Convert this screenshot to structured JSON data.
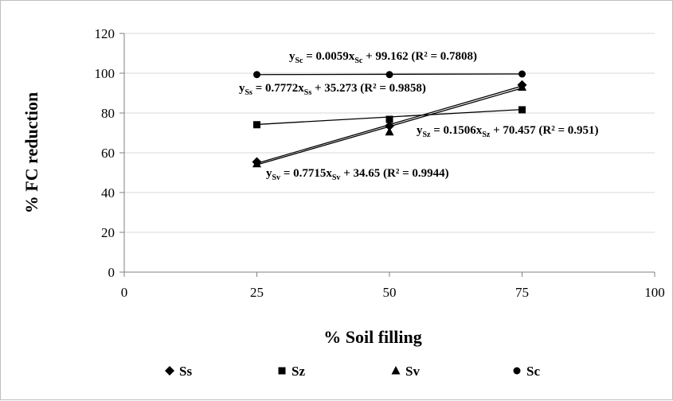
{
  "chart_data": {
    "type": "scatter",
    "title": "",
    "xlabel": "% Soil filling",
    "ylabel": "% FC reduction",
    "xlim": [
      0,
      100
    ],
    "ylim": [
      0,
      120
    ],
    "x_ticks": [
      0,
      25,
      50,
      75,
      100
    ],
    "y_ticks": [
      0,
      20,
      40,
      60,
      80,
      100,
      120
    ],
    "grid": "horizontal",
    "legend_position": "bottom",
    "series": [
      {
        "name": "Ss",
        "marker": "diamond",
        "x": [
          25,
          50,
          75
        ],
        "y": [
          55.4,
          73.5,
          94.1
        ],
        "trendline": {
          "slope": 0.7772,
          "intercept": 35.273
        },
        "equation": {
          "lhs": "y",
          "sub": "Ss",
          "middle": " = 0.7772x",
          "sub2": "Ss",
          "rhs": " + 35.273 ",
          "r2": "(R² = 0.9858)"
        }
      },
      {
        "name": "Sz",
        "marker": "square",
        "x": [
          25,
          50,
          75
        ],
        "y": [
          74.1,
          76.8,
          81.6
        ],
        "trendline": {
          "slope": 0.1506,
          "intercept": 70.457
        },
        "equation": {
          "lhs": "y",
          "sub": "Sz",
          "middle": " = 0.1506x",
          "sub2": "Sz",
          "rhs": " + 70.457 ",
          "r2": "(R² = 0.951)"
        }
      },
      {
        "name": "Sv",
        "marker": "triangle",
        "x": [
          25,
          50,
          75
        ],
        "y": [
          54.5,
          70.5,
          93.0
        ],
        "trendline": {
          "slope": 0.7715,
          "intercept": 34.65
        },
        "equation": {
          "lhs": "y",
          "sub": "Sv",
          "middle": " = 0.7715x",
          "sub2": "Sv",
          "rhs": " + 34.65  ",
          "r2": "(R² = 0.9944)"
        }
      },
      {
        "name": "Sc",
        "marker": "circle",
        "x": [
          25,
          50,
          75
        ],
        "y": [
          99.3,
          99.3,
          99.6
        ],
        "trendline": {
          "slope": 0.0059,
          "intercept": 99.162
        },
        "equation": {
          "lhs": "y",
          "sub": "Sc",
          "middle": " = 0.0059x",
          "sub2": "Sc",
          "rhs": " + 99.162  ",
          "r2": "(R² = 0.7808)"
        }
      }
    ]
  }
}
